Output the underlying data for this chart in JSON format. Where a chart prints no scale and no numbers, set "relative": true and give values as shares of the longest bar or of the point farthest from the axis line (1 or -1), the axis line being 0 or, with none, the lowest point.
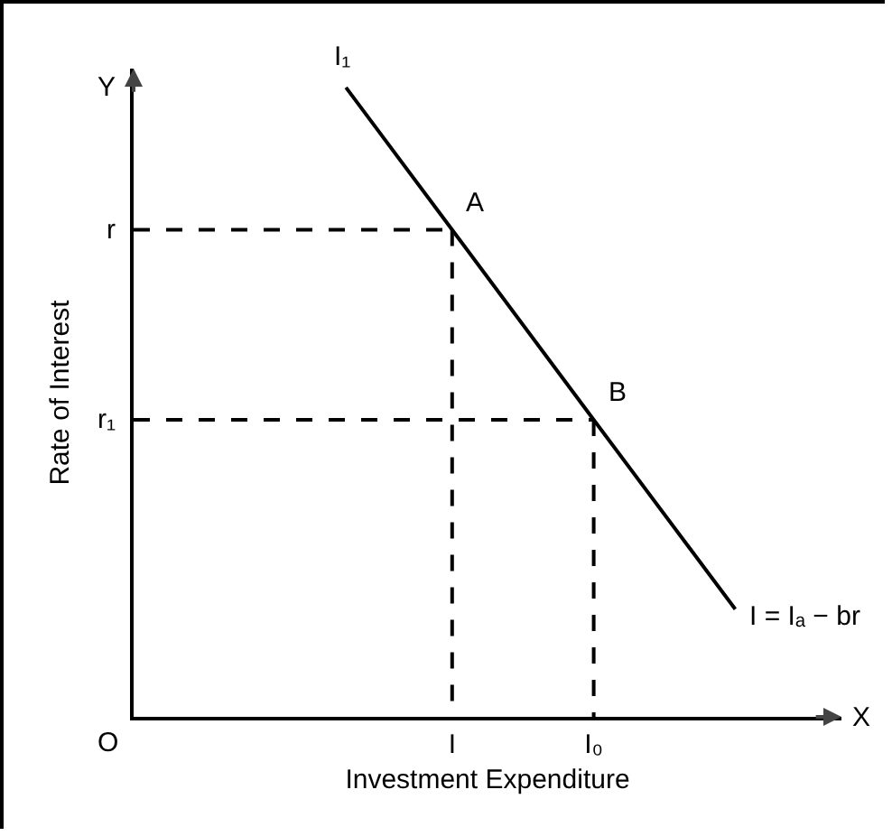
{
  "chart_data": {
    "type": "line",
    "relative": true,
    "xlabel": "Investment Expenditure",
    "ylabel": "Rate of Interest",
    "grid": false,
    "marker": "none",
    "categories": [
      null,
      null,
      null,
      null,
      null,
      null,
      null,
      null,
      null,
      "I",
      null,
      null,
      null,
      "I₀",
      null,
      null,
      null,
      null,
      null,
      null,
      null
    ],
    "series": [
      {
        "color": "#000000",
        "line_style": "solid",
        "values": [
          null,
          null,
          null,
          null,
          null,
          null,
          1,
          null,
          null,
          0.774,
          null,
          null,
          null,
          0.472,
          null,
          null,
          null,
          0.171,
          null,
          null,
          null
        ]
      },
      {
        "color": "#000000",
        "line_style": "dashed",
        "values": [
          0.774,
          0.774,
          0.774,
          0.774,
          0.774,
          0.774,
          0.774,
          0.774,
          0.774,
          0.774,
          null,
          null,
          null,
          null,
          null,
          null,
          null,
          null,
          null,
          null,
          null
        ]
      },
      {
        "color": "#000000",
        "line_style": "dashed",
        "x": [
          "I",
          "I"
        ],
        "values": [
          0.774,
          0
        ]
      },
      {
        "color": "#000000",
        "line_style": "dashed",
        "values": [
          0.472,
          0.472,
          0.472,
          0.472,
          0.472,
          0.472,
          0.472,
          0.472,
          0.472,
          0.472,
          0.472,
          0.472,
          0.472,
          0.472,
          null,
          null,
          null,
          null,
          null,
          null,
          null
        ]
      },
      {
        "color": "#000000",
        "line_style": "dashed",
        "x": [
          "I₀",
          "I₀"
        ],
        "values": [
          0.472,
          0
        ]
      }
    ],
    "annotations": [
      {
        "text": "A",
        "x": "I",
        "y": 0.774
      },
      {
        "text": "B",
        "x": "I₀",
        "y": 0.472
      },
      "O",
      "X",
      "Y",
      "I₁",
      "I = Iₐ − br",
      "r",
      "r₁"
    ]
  }
}
